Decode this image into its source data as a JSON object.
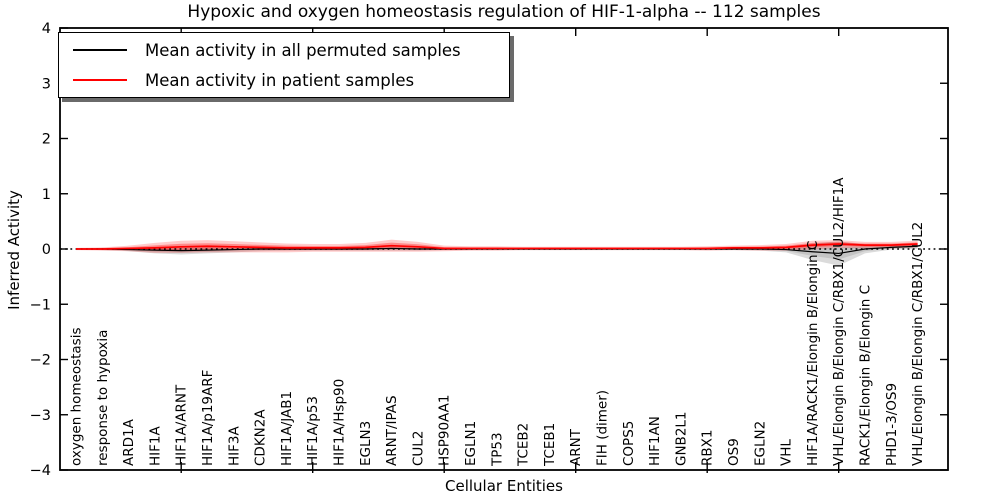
{
  "title": "Hypoxic and oxygen homeostasis regulation of HIF-1-alpha -- 112 samples",
  "legend": {
    "items": [
      {
        "label": "Mean activity in all permuted samples",
        "color": "#000000"
      },
      {
        "label": "Mean activity in patient samples",
        "color": "#ff0000"
      }
    ]
  },
  "chart_data": {
    "type": "line",
    "title": "Hypoxic and oxygen homeostasis regulation of HIF-1-alpha -- 112 samples",
    "xlabel": "Cellular Entities",
    "ylabel": "Inferred Activity",
    "ylim": [
      -4,
      4
    ],
    "yticks": [
      4,
      3,
      2,
      1,
      0,
      -1,
      -2,
      -3,
      -4
    ],
    "xtick_indices": [
      4,
      9,
      14,
      19,
      24,
      29
    ],
    "grid": false,
    "zero_line": "dotted-black",
    "legend_position": "upper-left",
    "categories": [
      "oxygen homeostasis",
      "response to hypoxia",
      "ARD1A",
      "HIF1A",
      "HIF1A/ARNT",
      "HIF1A/p19ARF",
      "HIF3A",
      "CDKN2A",
      "HIF1A/JAB1",
      "HIF1A/p53",
      "HIF1A/Hsp90",
      "EGLN3",
      "ARNT/IPAS",
      "CUL2",
      "HSP90AA1",
      "EGLN1",
      "TP53",
      "TCEB2",
      "TCEB1",
      "ARNT",
      "FIH (dimer)",
      "COPS5",
      "HIF1AN",
      "GNB2L1",
      "RBX1",
      "OS9",
      "EGLN2",
      "VHL",
      "HIF1A/RACK1/Elongin B/Elongin C",
      "VHL/Elongin B/Elongin C/RBX1/CUL2/HIF1A",
      "RACK1/Elongin B/Elongin C",
      "PHD1-3/OS9",
      "VHL/Elongin B/Elongin C/RBX1/CUL2"
    ],
    "series": [
      {
        "name": "Mean activity in all permuted samples",
        "color": "#000000",
        "band_color": "#888888",
        "values": [
          0.0,
          0.0,
          -0.01,
          -0.02,
          -0.03,
          -0.02,
          -0.01,
          0.0,
          0.0,
          0.0,
          0.0,
          0.0,
          0.01,
          0.0,
          0.0,
          0.0,
          0.0,
          0.0,
          0.0,
          0.0,
          0.0,
          0.0,
          0.0,
          0.0,
          0.0,
          0.0,
          0.0,
          -0.01,
          -0.05,
          -0.08,
          0.0,
          0.03,
          0.05
        ],
        "band_halfwidth": [
          0.01,
          0.02,
          0.03,
          0.06,
          0.07,
          0.06,
          0.05,
          0.04,
          0.03,
          0.03,
          0.03,
          0.03,
          0.04,
          0.03,
          0.02,
          0.02,
          0.02,
          0.02,
          0.02,
          0.02,
          0.02,
          0.02,
          0.02,
          0.02,
          0.02,
          0.02,
          0.03,
          0.05,
          0.15,
          0.22,
          0.08,
          0.04,
          0.05
        ]
      },
      {
        "name": "Mean activity in patient samples",
        "color": "#ff0000",
        "band_color": "#ff0000",
        "values": [
          0.0,
          0.0,
          0.01,
          0.02,
          0.04,
          0.05,
          0.04,
          0.03,
          0.02,
          0.02,
          0.02,
          0.03,
          0.06,
          0.04,
          0.01,
          0.01,
          0.01,
          0.01,
          0.01,
          0.01,
          0.01,
          0.01,
          0.01,
          0.01,
          0.01,
          0.02,
          0.02,
          0.03,
          0.07,
          0.09,
          0.07,
          0.07,
          0.09
        ],
        "band_halfwidth": [
          0.02,
          0.03,
          0.05,
          0.09,
          0.11,
          0.11,
          0.1,
          0.09,
          0.08,
          0.07,
          0.07,
          0.08,
          0.11,
          0.09,
          0.05,
          0.04,
          0.04,
          0.03,
          0.03,
          0.03,
          0.03,
          0.03,
          0.03,
          0.03,
          0.04,
          0.04,
          0.05,
          0.06,
          0.08,
          0.07,
          0.06,
          0.06,
          0.06
        ]
      }
    ]
  }
}
